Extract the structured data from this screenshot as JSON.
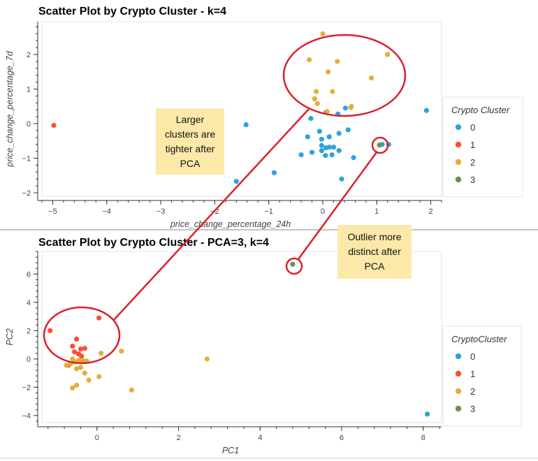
{
  "chart_data": [
    {
      "type": "scatter",
      "title": "Scatter Plot by Crypto Cluster - k=4",
      "xlabel": "price_change_percentage_24h",
      "ylabel": "price_change_percentage_7d",
      "xlim": [
        -5.2,
        2.2
      ],
      "ylim": [
        -2.1,
        2.95
      ],
      "xticks": [
        -5,
        -4,
        -3,
        -2,
        -1,
        0,
        1,
        2
      ],
      "yticks": [
        -2,
        -1,
        0,
        1,
        2
      ],
      "grid": false,
      "legend": {
        "title": "Crypto Cluster",
        "placement": "right",
        "entries": [
          "0",
          "1",
          "2",
          "3"
        ]
      },
      "series": [
        {
          "name": "0",
          "color": "#30a2da",
          "points": [
            [
              -0.22,
              0.15
            ],
            [
              0.06,
              0.33
            ],
            [
              0.28,
              0.28
            ],
            [
              0.42,
              0.45
            ],
            [
              1.92,
              0.38
            ],
            [
              -1.42,
              -0.03
            ],
            [
              -0.28,
              -0.38
            ],
            [
              -0.06,
              -0.22
            ],
            [
              -0.02,
              -0.45
            ],
            [
              0.12,
              -0.38
            ],
            [
              0.3,
              -0.28
            ],
            [
              0.47,
              -0.18
            ],
            [
              -0.02,
              -0.63
            ],
            [
              0.06,
              -0.7
            ],
            [
              0.12,
              -0.68
            ],
            [
              0.2,
              -0.68
            ],
            [
              0.3,
              -0.78
            ],
            [
              -0.02,
              -0.78
            ],
            [
              -0.4,
              -0.9
            ],
            [
              -0.2,
              -0.83
            ],
            [
              0.05,
              -0.92
            ],
            [
              0.17,
              -0.9
            ],
            [
              0.57,
              -0.98
            ],
            [
              -0.9,
              -1.42
            ],
            [
              0.35,
              -1.6
            ],
            [
              -1.6,
              -1.67
            ],
            [
              1.1,
              -0.6
            ],
            [
              1.22,
              -0.6
            ]
          ]
        },
        {
          "name": "1",
          "color": "#fc4f30",
          "points": [
            [
              -4.98,
              -0.05
            ]
          ]
        },
        {
          "name": "2",
          "color": "#e5ae38",
          "points": [
            [
              0.0,
              2.6
            ],
            [
              1.2,
              2.0
            ],
            [
              -0.25,
              1.85
            ],
            [
              0.27,
              1.8
            ],
            [
              0.1,
              1.5
            ],
            [
              0.9,
              1.32
            ],
            [
              -0.12,
              0.93
            ],
            [
              0.18,
              0.93
            ],
            [
              -0.15,
              0.72
            ],
            [
              -0.1,
              0.58
            ],
            [
              0.53,
              0.5
            ],
            [
              0.52,
              0.47
            ],
            [
              0.08,
              0.35
            ]
          ]
        },
        {
          "name": "3",
          "color": "#6d904f",
          "points": [
            [
              1.05,
              -0.62
            ]
          ]
        }
      ]
    },
    {
      "type": "scatter",
      "title": "Scatter Plot by Crypto Cluster - PCA=3, k=4",
      "xlabel": "PC1",
      "ylabel": "PC2",
      "xlim": [
        -1.35,
        8.45
      ],
      "ylim": [
        -4.5,
        7.6
      ],
      "xticks": [
        0,
        2,
        4,
        6,
        8
      ],
      "yticks": [
        -4,
        -2,
        0,
        2,
        4,
        6
      ],
      "grid": false,
      "legend": {
        "title": "CryptoCluster",
        "placement": "right",
        "entries": [
          "0",
          "1",
          "2",
          "3"
        ]
      },
      "series": [
        {
          "name": "0",
          "color": "#30a2da",
          "points": [
            [
              8.1,
              -3.9
            ]
          ]
        },
        {
          "name": "1",
          "color": "#fc4f30",
          "points": [
            [
              -1.15,
              2.0
            ],
            [
              0.05,
              2.9
            ],
            [
              -0.5,
              1.4
            ],
            [
              -0.6,
              0.9
            ],
            [
              -0.4,
              0.7
            ],
            [
              -0.3,
              0.75
            ],
            [
              -0.55,
              0.5
            ],
            [
              -0.45,
              0.35
            ],
            [
              -0.38,
              0.2
            ],
            [
              -0.7,
              -0.45
            ]
          ]
        },
        {
          "name": "2",
          "color": "#e5ae38",
          "points": [
            [
              -0.75,
              -0.45
            ],
            [
              -0.65,
              -0.35
            ],
            [
              -0.55,
              -0.2
            ],
            [
              -0.45,
              -0.1
            ],
            [
              -0.35,
              -0.1
            ],
            [
              -0.25,
              -0.15
            ],
            [
              -0.6,
              0.0
            ],
            [
              -0.5,
              -0.7
            ],
            [
              -0.4,
              -0.6
            ],
            [
              -0.3,
              -1.0
            ],
            [
              -0.2,
              -1.5
            ],
            [
              0.6,
              0.55
            ],
            [
              0.1,
              0.4
            ],
            [
              0.05,
              -1.25
            ],
            [
              -0.5,
              -1.85
            ],
            [
              -0.6,
              -2.05
            ],
            [
              0.85,
              -2.2
            ],
            [
              2.7,
              0.0
            ]
          ]
        },
        {
          "name": "3",
          "color": "#6d904f",
          "points": [
            [
              4.8,
              6.7
            ]
          ]
        }
      ]
    }
  ],
  "annotations": {
    "note1": "Larger clusters are tighter after PCA",
    "note2": "Outlier more distinct after PCA"
  }
}
